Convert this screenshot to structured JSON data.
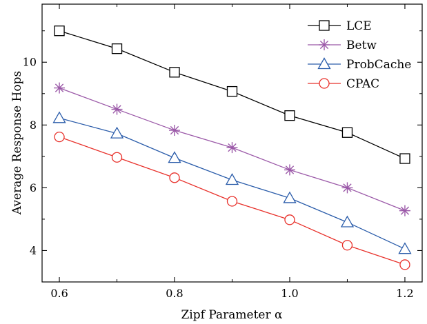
{
  "chart_data": {
    "type": "line",
    "xlabel": "Zipf Parameter α",
    "ylabel": "Average Response Hops",
    "xlim": [
      0.57,
      1.23
    ],
    "ylim": [
      3.0,
      11.85
    ],
    "x": [
      0.6,
      0.7,
      0.8,
      0.9,
      1.0,
      1.1,
      1.2
    ],
    "x_ticks": [
      "0.6",
      "0.8",
      "1.0",
      "1.2"
    ],
    "y_ticks": [
      "4",
      "6",
      "8",
      "10"
    ],
    "legend_position": "top-right",
    "grid": false,
    "series": [
      {
        "name": "LCE",
        "color": "#000000",
        "marker": "square",
        "values": [
          11.0,
          10.43,
          9.68,
          9.07,
          8.3,
          7.76,
          6.93
        ]
      },
      {
        "name": "Betw",
        "color": "#9b59a8",
        "marker": "star",
        "values": [
          9.18,
          8.5,
          7.83,
          7.28,
          6.57,
          6.0,
          5.27
        ]
      },
      {
        "name": "ProbCache",
        "color": "#2a5caa",
        "marker": "triangle",
        "values": [
          8.22,
          7.73,
          6.95,
          6.25,
          5.67,
          4.9,
          4.05
        ]
      },
      {
        "name": "CPAC",
        "color": "#e8302a",
        "marker": "circle",
        "values": [
          7.62,
          6.97,
          6.32,
          5.57,
          4.98,
          4.17,
          3.55
        ]
      }
    ]
  }
}
